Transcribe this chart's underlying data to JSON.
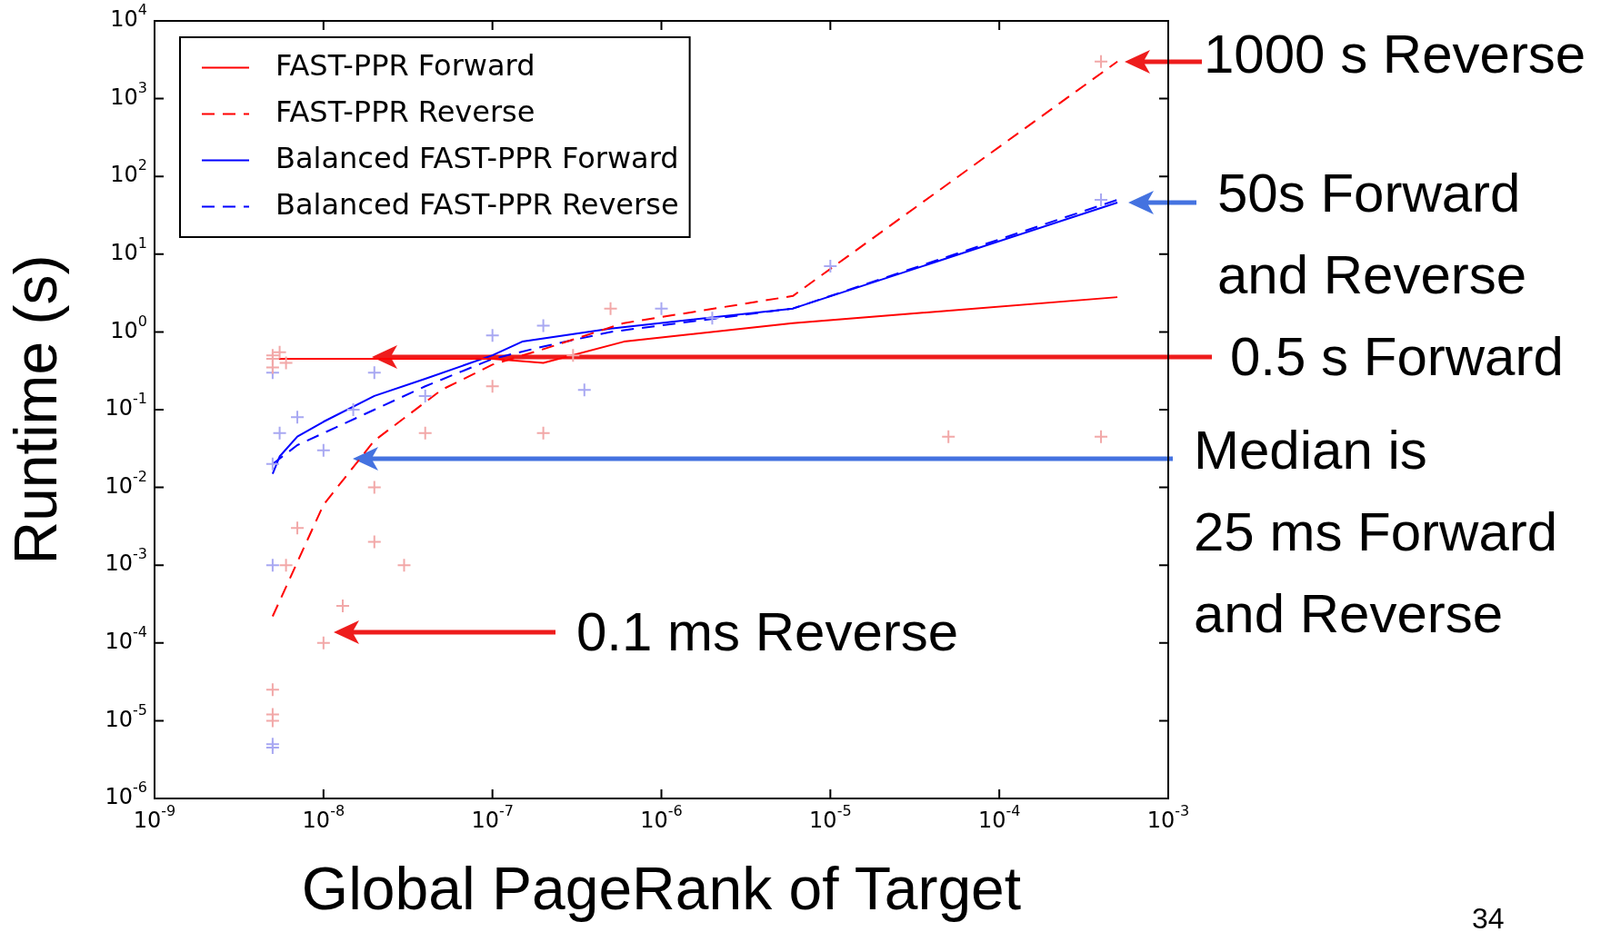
{
  "chart_data": {
    "type": "line",
    "xlabel": "Global PageRank of Target",
    "ylabel": "Runtime (s)",
    "xlim": [
      1e-09,
      0.001
    ],
    "ylim": [
      1e-06,
      10000.0
    ],
    "xticks": [
      {
        "value": 1e-09,
        "label": "10$^{-9}$"
      },
      {
        "value": 1e-08,
        "label": "10$^{-8}$"
      },
      {
        "value": 1e-07,
        "label": "10$^{-7}$"
      },
      {
        "value": 1e-06,
        "label": "10$^{-6}$"
      },
      {
        "value": 1e-05,
        "label": "10$^{-5}$"
      },
      {
        "value": 0.0001,
        "label": "10$^{-4}$"
      },
      {
        "value": 0.001,
        "label": "10$^{-3}$"
      }
    ],
    "yticks": [
      {
        "value": 1e-06,
        "label": "10$^{-6}$"
      },
      {
        "value": 1e-05,
        "label": "10$^{-5}$"
      },
      {
        "value": 0.0001,
        "label": "10$^{-4}$"
      },
      {
        "value": 0.001,
        "label": "10$^{-3}$"
      },
      {
        "value": 0.01,
        "label": "10$^{-2}$"
      },
      {
        "value": 0.1,
        "label": "10$^{-1}$"
      },
      {
        "value": 1,
        "label": "10$^{0}$"
      },
      {
        "value": 10,
        "label": "10$^{1}$"
      },
      {
        "value": 100,
        "label": "10$^{2}$"
      },
      {
        "value": 1000,
        "label": "10$^{3}$"
      },
      {
        "value": 10000,
        "label": "10$^{4}$"
      }
    ],
    "log": "xy",
    "legend": "top left",
    "marker": "none",
    "series": [
      {
        "type": "scatter",
        "marker": "cross",
        "color": "#f2a8a8",
        "x": [
          5e-09,
          5e-09,
          5e-09,
          5.5e-09,
          6e-09,
          5e-09,
          5e-09,
          5e-09,
          6e-09,
          7e-09,
          1e-08,
          1.3e-08,
          2e-08,
          2e-08,
          3e-08,
          4e-08,
          1e-07,
          2e-07,
          3e-07,
          5e-07,
          5e-05,
          0.0004,
          0.0004
        ],
        "values": [
          0.45,
          0.5,
          0.35,
          0.55,
          0.4,
          1.2e-05,
          2.5e-05,
          1e-05,
          0.001,
          0.003,
          0.0001,
          0.0003,
          0.002,
          0.01,
          0.001,
          0.05,
          0.2,
          0.05,
          0.5,
          2,
          0.045,
          3000,
          0.045
        ]
      },
      {
        "type": "scatter",
        "marker": "cross",
        "color": "#a8a8f2",
        "x": [
          5e-09,
          5e-09,
          5e-09,
          5e-09,
          5e-09,
          5.5e-09,
          7e-09,
          1e-08,
          1.5e-08,
          2e-08,
          4e-08,
          1e-07,
          2e-07,
          3.5e-07,
          1e-06,
          2e-06,
          0.0004,
          1e-05
        ],
        "values": [
          0.02,
          0.3,
          5e-06,
          4.5e-06,
          0.001,
          0.05,
          0.08,
          0.03,
          0.1,
          0.3,
          0.15,
          0.9,
          1.2,
          0.18,
          2,
          1.5,
          50,
          7
        ]
      },
      {
        "name": "FAST-PPR Forward",
        "color": "#ff0000",
        "line_style": "solid",
        "x": [
          5e-09,
          1e-08,
          3e-08,
          1e-07,
          2e-07,
          6e-07,
          6e-06,
          0.0005
        ],
        "values": [
          0.45,
          0.45,
          0.45,
          0.45,
          0.4,
          0.75,
          1.3,
          2.8
        ]
      },
      {
        "name": "FAST-PPR Reverse",
        "color": "#ff0000",
        "line_style": "dashed",
        "x": [
          5e-09,
          1e-08,
          2e-08,
          5e-08,
          1e-07,
          2e-07,
          6e-07,
          6e-06,
          0.0005
        ],
        "values": [
          0.00022,
          0.006,
          0.04,
          0.18,
          0.38,
          0.6,
          1.3,
          2.9,
          3000
        ]
      },
      {
        "name": "Balanced FAST-PPR Forward",
        "color": "#0000ff",
        "line_style": "solid",
        "x": [
          5e-09,
          5.5e-09,
          7e-09,
          1e-08,
          2e-08,
          4e-08,
          1e-07,
          1.5e-07,
          5e-07,
          6e-06,
          0.0005
        ],
        "values": [
          0.015,
          0.025,
          0.045,
          0.07,
          0.15,
          0.25,
          0.5,
          0.75,
          1.1,
          2.0,
          46
        ]
      },
      {
        "name": "Balanced FAST-PPR Reverse",
        "color": "#0000ff",
        "line_style": "dashed",
        "x": [
          5e-09,
          7e-09,
          1e-08,
          2e-08,
          4e-08,
          1e-07,
          2e-07,
          5e-07,
          6e-06,
          0.0005
        ],
        "values": [
          0.02,
          0.035,
          0.05,
          0.1,
          0.2,
          0.45,
          0.65,
          1.0,
          2.0,
          50
        ]
      }
    ],
    "annotations": [
      "1000 s Reverse",
      "50s Forward\nand Reverse",
      "0.5 s Forward",
      "Median is\n25 ms Forward\nand Reverse",
      "0.1 ms Reverse",
      "34"
    ]
  }
}
